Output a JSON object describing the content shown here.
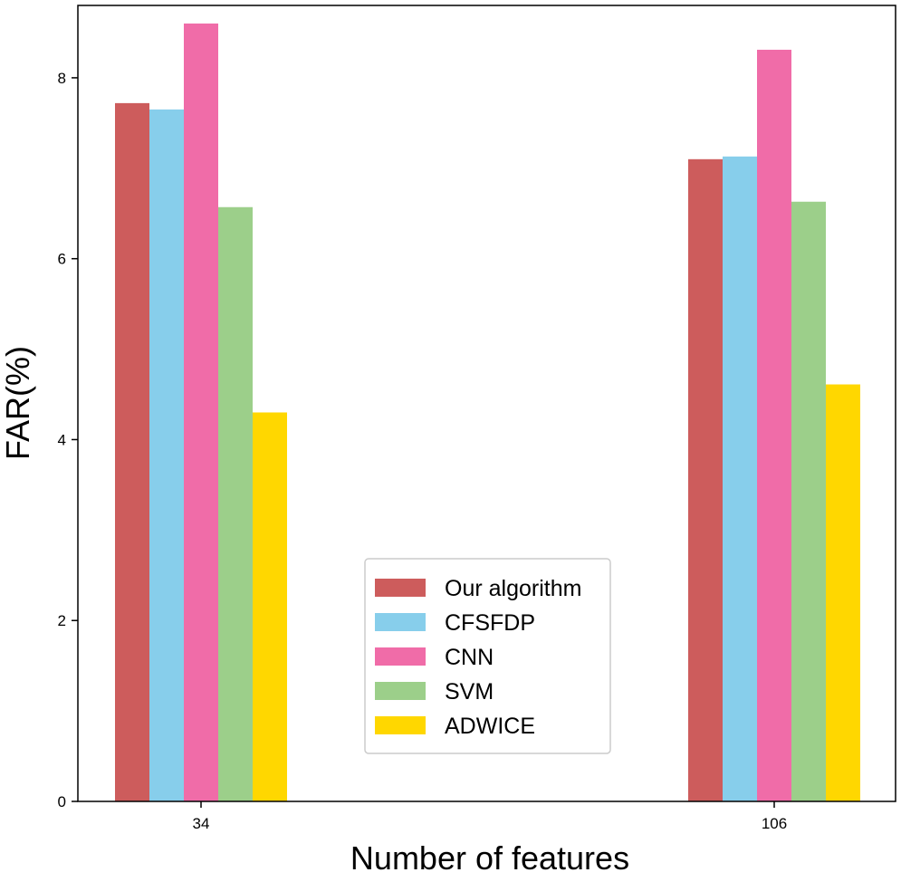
{
  "chart_data": {
    "type": "bar",
    "title": "",
    "xlabel": "Number of features",
    "ylabel": "FAR(%)",
    "categories": [
      "34",
      "106"
    ],
    "ylim": [
      0,
      8.8
    ],
    "yticks": [
      0,
      2,
      4,
      6,
      8
    ],
    "grid": false,
    "legend_position": "bottom-center",
    "series": [
      {
        "name": "Our algorithm",
        "color": "#cd5c5c",
        "values": [
          7.72,
          7.1
        ]
      },
      {
        "name": "CFSFDP",
        "color": "#87ceeb",
        "values": [
          7.65,
          7.13
        ]
      },
      {
        "name": "CNN",
        "color": "#f06ca8",
        "values": [
          8.6,
          8.31
        ]
      },
      {
        "name": "SVM",
        "color": "#9ccf8a",
        "values": [
          6.57,
          6.63
        ]
      },
      {
        "name": "ADWICE",
        "color": "#ffd700",
        "values": [
          4.3,
          4.61
        ]
      }
    ]
  }
}
